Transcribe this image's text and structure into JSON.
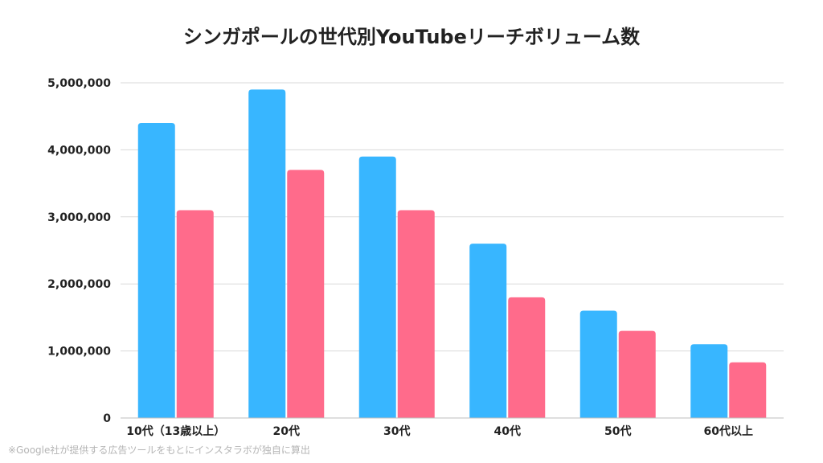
{
  "chart_data": {
    "type": "bar",
    "title": "シンガポールの世代別YouTubeリーチボリューム数",
    "categories": [
      "10代（13歳以上）",
      "20代",
      "30代",
      "40代",
      "50代",
      "60代以上"
    ],
    "series": [
      {
        "color": "#38b6ff",
        "values": [
          4400000,
          4900000,
          3900000,
          2600000,
          1600000,
          1100000
        ]
      },
      {
        "color": "#ff6b8b",
        "values": [
          3100000,
          3700000,
          3100000,
          1800000,
          1300000,
          830000
        ]
      }
    ],
    "ylim": [
      0,
      5000000
    ],
    "yticks": [
      0,
      1000000,
      2000000,
      3000000,
      4000000,
      5000000
    ],
    "ytick_labels": [
      "0",
      "1,000,000",
      "2,000,000",
      "3,000,000",
      "4,000,000",
      "5,000,000"
    ],
    "grid": true,
    "xlabel": "",
    "ylabel": ""
  },
  "note": "※Google社が提供する広告ツールをもとにインスタラボが独自に算出"
}
